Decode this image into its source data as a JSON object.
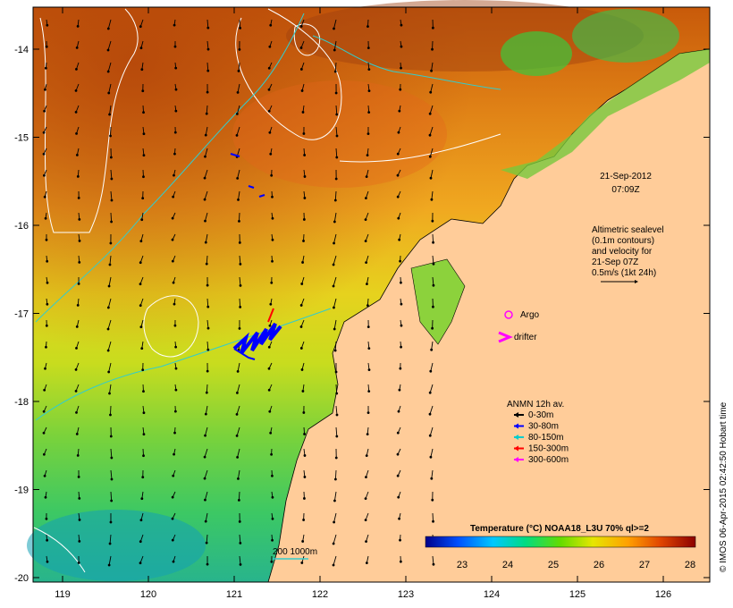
{
  "map": {
    "datetime_line1": "21-Sep-2012",
    "datetime_line2": "07:09Z",
    "altimetry_lines": [
      "Altimetric sealevel",
      "(0.1m contours)",
      "and velocity for",
      "21-Sep 07Z",
      "0.5m/s (1kt 24h)"
    ],
    "argo_label": "Argo",
    "drifter_label": "drifter",
    "anmn_title": "ANMN 12h av.",
    "anmn_depths": [
      {
        "label": "0-30m",
        "color": "#000000"
      },
      {
        "label": "30-80m",
        "color": "#0000ff"
      },
      {
        "label": "80-150m",
        "color": "#00cccc"
      },
      {
        "label": "150-300m",
        "color": "#ff0000"
      },
      {
        "label": "300-600m",
        "color": "#ff00ff"
      }
    ],
    "colorbar_title": "Temperature (°C) NOAA18_L3U 70% ql>=2",
    "colorbar_ticks": [
      "23",
      "24",
      "25",
      "26",
      "27",
      "28"
    ],
    "bathy_label": "200  1000m",
    "credit": "© IMOS 06-Apr-2015 02:42:50 Hobart time",
    "x_ticks": [
      "119",
      "120",
      "121",
      "122",
      "123",
      "124",
      "125",
      "126"
    ],
    "y_ticks": [
      "-14",
      "-15",
      "-16",
      "-17",
      "-18",
      "-19",
      "-20"
    ],
    "colors": {
      "land": "#ffcc99",
      "frame": "#000000",
      "contour": "#ffffff",
      "bathy": "#33cccc"
    }
  }
}
